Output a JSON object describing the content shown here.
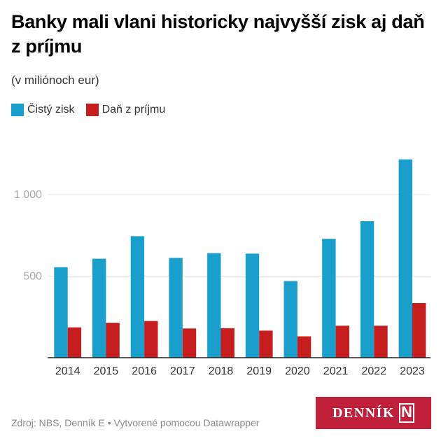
{
  "header": {
    "title": "Banky mali vlani historicky najvyšší zisk aj daň z príjmu",
    "subtitle": "(v miliónoch eur)"
  },
  "legend": [
    {
      "label": "Čistý zisk",
      "color": "#1a9fcc"
    },
    {
      "label": "Daň z príjmu",
      "color": "#c61e1e"
    }
  ],
  "footer": {
    "source": "Zdroj: NBS, Denník E • Vytvorené pomocou Datawrapper",
    "logo_text": "DENNÍK",
    "logo_mark": "N"
  },
  "chart_data": {
    "type": "bar",
    "title": "Banky mali vlani historicky najvyšší zisk aj daň z príjmu",
    "subtitle": "(v miliónoch eur)",
    "xlabel": "",
    "ylabel": "",
    "categories": [
      "2014",
      "2015",
      "2016",
      "2017",
      "2018",
      "2019",
      "2020",
      "2021",
      "2022",
      "2023"
    ],
    "series": [
      {
        "name": "Čistý zisk",
        "color": "#1a9fcc",
        "values": [
          555,
          607,
          745,
          612,
          641,
          638,
          470,
          729,
          837,
          1216
        ]
      },
      {
        "name": "Daň z príjmu",
        "color": "#c61e1e",
        "values": [
          186,
          214,
          225,
          179,
          181,
          166,
          131,
          196,
          196,
          335
        ]
      }
    ],
    "yticks": [
      {
        "value": 500,
        "label": "500"
      },
      {
        "value": 1000,
        "label": "1 000"
      }
    ],
    "ylim": [
      0,
      1250
    ],
    "grid": true,
    "legend_position": "top-left"
  }
}
